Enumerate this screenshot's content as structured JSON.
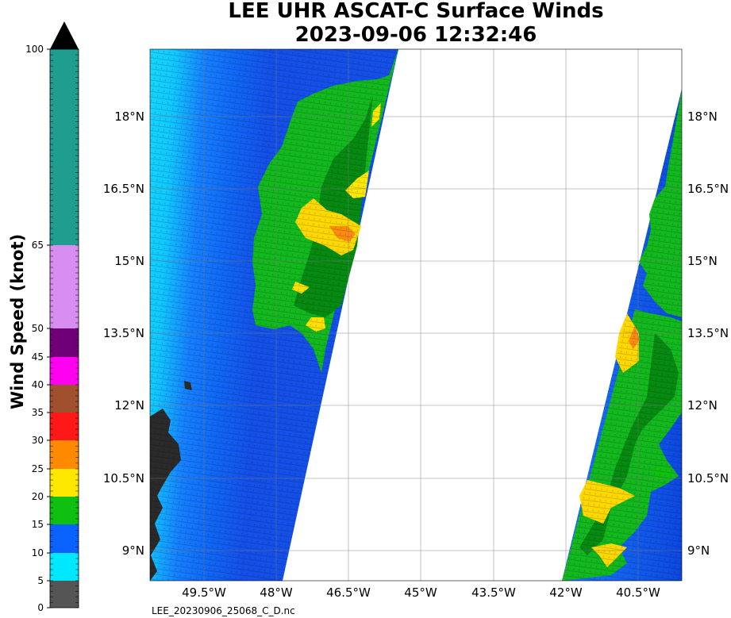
{
  "title": {
    "line1": "LEE UHR ASCAT-C Surface Winds",
    "line2": "2023-09-06 12:32:46"
  },
  "colorbar": {
    "label": "Wind Speed (knot)",
    "ticks": [
      "100",
      "65",
      "50",
      "45",
      "40",
      "35",
      "30",
      "25",
      "20",
      "15",
      "10",
      "5",
      "0"
    ],
    "segments": [
      {
        "from": 0,
        "to": 5,
        "color": "#555555"
      },
      {
        "from": 5,
        "to": 10,
        "color": "#00e8ff"
      },
      {
        "from": 10,
        "to": 15,
        "color": "#0a63ff"
      },
      {
        "from": 15,
        "to": 20,
        "color": "#10c010"
      },
      {
        "from": 20,
        "to": 25,
        "color": "#ffe800"
      },
      {
        "from": 25,
        "to": 30,
        "color": "#ff8a00"
      },
      {
        "from": 30,
        "to": 35,
        "color": "#ff1818"
      },
      {
        "from": 35,
        "to": 40,
        "color": "#a0502e"
      },
      {
        "from": 40,
        "to": 45,
        "color": "#ff00f0"
      },
      {
        "from": 45,
        "to": 50,
        "color": "#70007a"
      },
      {
        "from": 50,
        "to": 65,
        "color": "#d88ef0"
      },
      {
        "from": 65,
        "to": 100,
        "color": "#1f9d8f"
      }
    ]
  },
  "map": {
    "lat_labels": [
      "18°N",
      "16.5°N",
      "15°N",
      "13.5°N",
      "12°N",
      "10.5°N",
      "9°N"
    ],
    "lon_labels": [
      "49.5°W",
      "48°W",
      "46.5°W",
      "45°W",
      "43.5°W",
      "42°W",
      "40.5°W"
    ],
    "land_color": "#2a2a2a",
    "gap_color": "#ffffff"
  },
  "filename": "LEE_20230906_25068_C_D.nc"
}
